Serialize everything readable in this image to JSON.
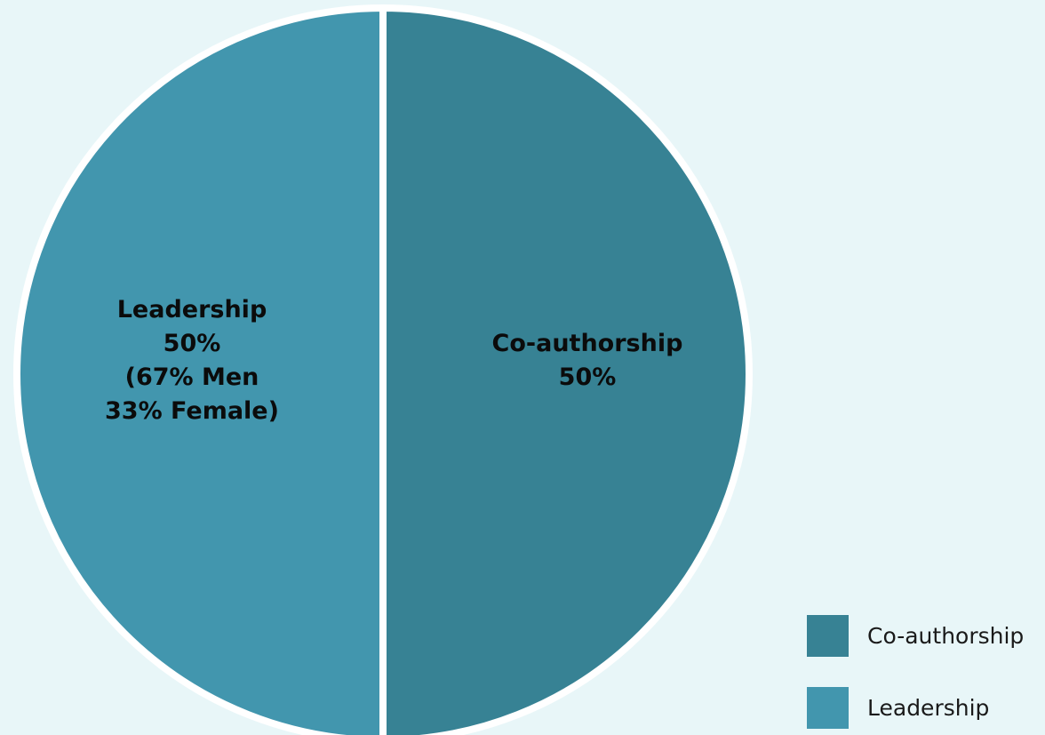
{
  "chart_data": {
    "type": "pie",
    "title": "",
    "slices": [
      {
        "name": "Co-authorship",
        "value": 50,
        "color": "#378294",
        "label_lines": [
          "Co-authorship",
          "50%"
        ]
      },
      {
        "name": "Leadership",
        "value": 50,
        "color": "#4296AE",
        "label_lines": [
          "Leadership",
          "50%",
          "(67% Men",
          "33% Female)"
        ]
      }
    ],
    "legend": {
      "position": "bottom-right",
      "items": [
        {
          "label": "Co-authorship",
          "color": "#378294"
        },
        {
          "label": "Leadership",
          "color": "#4296AE"
        }
      ]
    }
  }
}
